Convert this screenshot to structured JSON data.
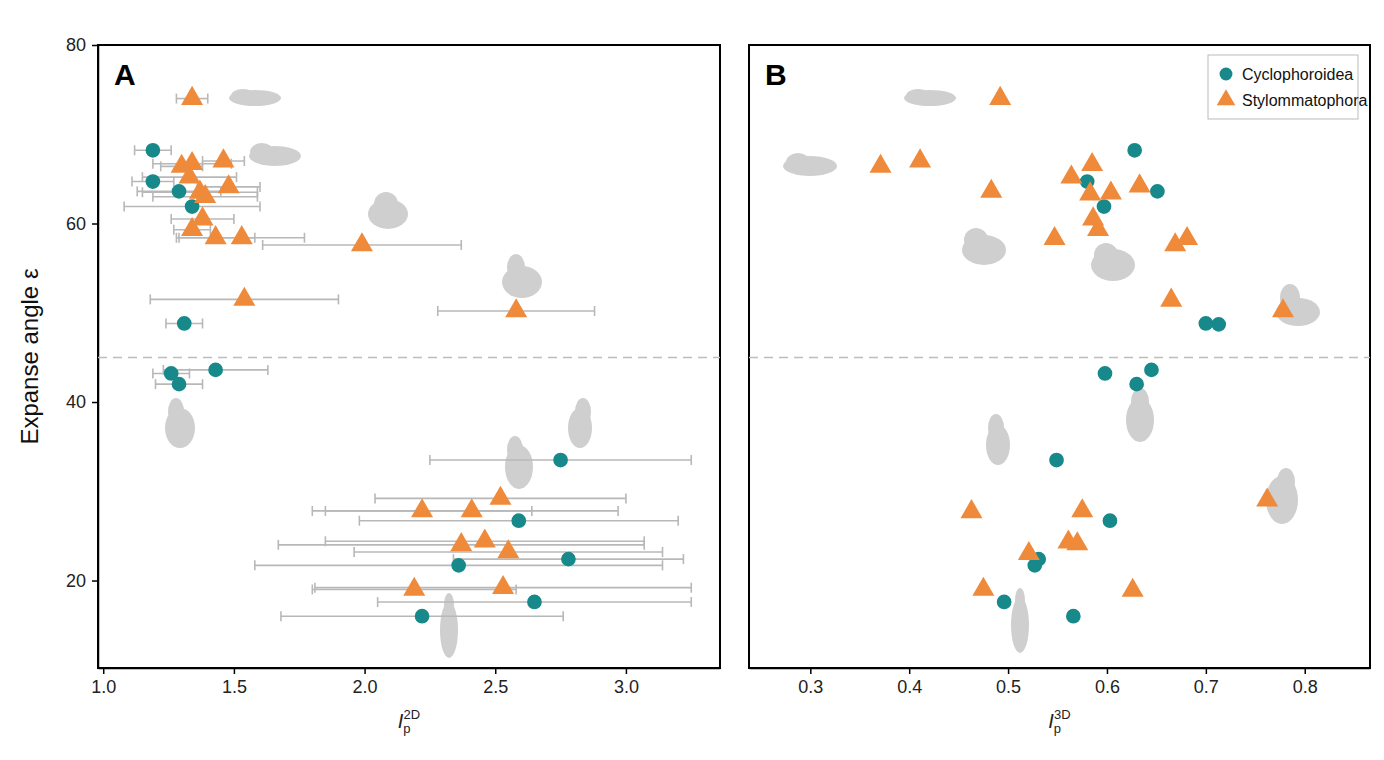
{
  "chart_data": [
    {
      "type": "scatter",
      "title": "A",
      "x_label": {
        "text": "I",
        "sub": "p",
        "sup": "2D"
      },
      "y_label": "Expanse angle ε",
      "xlim": [
        0.98,
        3.36
      ],
      "ylim": [
        10.2,
        80
      ],
      "xticks": [
        {
          "value": 1,
          "label": "1.0"
        },
        1.5,
        {
          "value": 2,
          "label": "2.0"
        },
        2.5,
        {
          "value": 3,
          "label": "3.0"
        }
      ],
      "yticks": [
        20,
        40,
        60,
        80
      ],
      "hlines": [
        45
      ],
      "series": [
        {
          "name": "Cyclophoroidea",
          "color": "#17898a",
          "marker": "circle",
          "x": [
            1.19,
            1.19,
            1.29,
            1.34,
            1.31,
            1.26,
            1.29,
            1.43,
            2.75,
            2.59,
            2.36,
            2.78,
            2.65,
            2.22
          ],
          "values": [
            68.2,
            64.7,
            63.6,
            61.9,
            48.8,
            43.2,
            42.0,
            43.6,
            33.5,
            26.7,
            21.7,
            22.4,
            17.6,
            16.0
          ],
          "x_errors": [
            0.07,
            0.08,
            0.16,
            0.26,
            0.07,
            0.07,
            0.09,
            0.2,
            0.5,
            0.61,
            0.78,
            0.44,
            0.6,
            0.54
          ]
        },
        {
          "name": "Stylommatophora",
          "color": "#ef8a3b",
          "marker": "triangle",
          "x": [
            1.34,
            1.3,
            1.34,
            1.33,
            1.46,
            1.37,
            1.48,
            1.39,
            1.38,
            1.34,
            1.43,
            1.53,
            1.99,
            1.54,
            2.58,
            2.22,
            2.41,
            2.52,
            2.37,
            2.46,
            2.55,
            2.19,
            2.53
          ],
          "values": [
            74.0,
            66.4,
            66.7,
            65.2,
            67.0,
            63.5,
            64.1,
            63.0,
            60.5,
            59.3,
            58.4,
            58.4,
            57.6,
            51.5,
            50.2,
            27.8,
            27.8,
            29.2,
            24.0,
            24.4,
            23.2,
            19.0,
            19.2
          ],
          "x_errors": [
            0.06,
            0.08,
            0.15,
            0.18,
            0.08,
            0.22,
            0.12,
            0.2,
            0.12,
            0.07,
            0.15,
            0.24,
            0.38,
            0.36,
            0.3,
            0.42,
            0.56,
            0.48,
            0.7,
            0.61,
            0.59,
            0.39,
            0.72
          ]
        }
      ]
    },
    {
      "type": "scatter",
      "title": "B",
      "x_label": {
        "text": "I",
        "sub": "p",
        "sup": "3D"
      },
      "xlim": [
        0.238,
        0.866
      ],
      "ylim": [
        10.2,
        80
      ],
      "xticks": [
        0.3,
        0.4,
        0.5,
        0.6,
        0.7,
        0.8
      ],
      "tick_labels": "x",
      "legend": "upper right",
      "hlines": [
        45
      ],
      "series": [
        {
          "name": "Cyclophoroidea",
          "color": "#17898a",
          "marker": "circle",
          "x": [
            0.628,
            0.58,
            0.597,
            0.651,
            0.7,
            0.713,
            0.598,
            0.63,
            0.645,
            0.549,
            0.603,
            0.531,
            0.527,
            0.496,
            0.566
          ],
          "values": [
            68.2,
            64.7,
            61.9,
            63.6,
            48.8,
            48.7,
            43.2,
            42.0,
            43.6,
            33.5,
            26.7,
            22.4,
            21.7,
            17.6,
            16.0
          ]
        },
        {
          "name": "Stylommatophora",
          "color": "#ef8a3b",
          "marker": "triangle",
          "x": [
            0.492,
            0.371,
            0.411,
            0.483,
            0.564,
            0.585,
            0.583,
            0.604,
            0.633,
            0.586,
            0.591,
            0.547,
            0.669,
            0.681,
            0.665,
            0.778,
            0.463,
            0.575,
            0.762,
            0.521,
            0.561,
            0.57,
            0.475,
            0.626
          ],
          "values": [
            74.0,
            66.4,
            67.0,
            63.6,
            65.2,
            66.6,
            63.3,
            63.4,
            64.2,
            60.5,
            59.3,
            58.3,
            57.6,
            58.3,
            51.4,
            50.2,
            27.7,
            27.8,
            29.0,
            23.0,
            24.3,
            24.1,
            19.0,
            18.9
          ]
        }
      ]
    }
  ]
}
